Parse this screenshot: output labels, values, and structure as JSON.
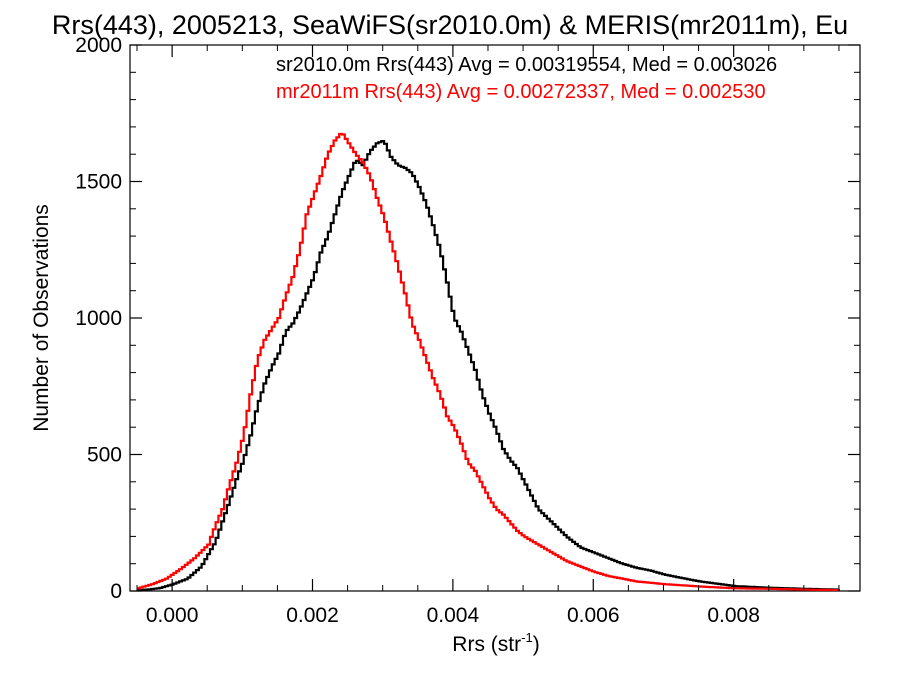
{
  "chart_data": {
    "type": "line",
    "title": "Rrs(443), 2005213, SeaWiFS(sr2010.0m) & MERIS(mr2011m), Eu",
    "xlabel_main": "Rrs (str",
    "xlabel_sup": "-1",
    "xlabel_close": ")",
    "ylabel": "Number of Observations",
    "xlim": [
      -0.0006,
      0.0098
    ],
    "ylim": [
      0,
      2000
    ],
    "xticks": [
      0.0,
      0.002,
      0.004,
      0.006,
      0.008
    ],
    "xtick_labels": [
      "0.000",
      "0.002",
      "0.004",
      "0.006",
      "0.008"
    ],
    "yticks": [
      0,
      500,
      1000,
      1500,
      2000
    ],
    "ytick_labels": [
      "0",
      "500",
      "1000",
      "1500",
      "2000"
    ],
    "grid": false,
    "legend_position": "top-right",
    "series": [
      {
        "name": "sr2010.0m",
        "stat_text": "sr2010.0m Rrs(443) Avg = 0.00319554, Med = 0.003026",
        "color": "#000000",
        "x": [
          -0.0005,
          -0.0002,
          0.0,
          0.0002,
          0.0004,
          0.0006,
          0.0008,
          0.0009,
          0.001,
          0.0011,
          0.0012,
          0.0013,
          0.0014,
          0.0015,
          0.0016,
          0.0017,
          0.0018,
          0.0019,
          0.002,
          0.0021,
          0.0022,
          0.0023,
          0.0024,
          0.0025,
          0.0026,
          0.0027,
          0.0028,
          0.0029,
          0.003,
          0.0031,
          0.0032,
          0.0033,
          0.0034,
          0.0035,
          0.0036,
          0.0037,
          0.0038,
          0.0039,
          0.004,
          0.0041,
          0.0042,
          0.0043,
          0.0044,
          0.0045,
          0.0046,
          0.0047,
          0.0048,
          0.0049,
          0.005,
          0.0051,
          0.0052,
          0.0054,
          0.0056,
          0.0058,
          0.006,
          0.0062,
          0.0064,
          0.0066,
          0.0068,
          0.007,
          0.0072,
          0.0075,
          0.0078,
          0.008,
          0.0085,
          0.009,
          0.0095
        ],
        "values": [
          2,
          10,
          25,
          45,
          90,
          180,
          330,
          410,
          480,
          570,
          680,
          760,
          820,
          870,
          950,
          980,
          1030,
          1090,
          1150,
          1240,
          1300,
          1380,
          1460,
          1520,
          1580,
          1560,
          1610,
          1640,
          1650,
          1590,
          1560,
          1550,
          1530,
          1480,
          1420,
          1340,
          1250,
          1130,
          1000,
          950,
          880,
          810,
          720,
          650,
          590,
          520,
          480,
          450,
          400,
          350,
          300,
          250,
          200,
          160,
          140,
          120,
          100,
          85,
          75,
          60,
          50,
          35,
          25,
          18,
          12,
          8,
          5
        ]
      },
      {
        "name": "mr2011m",
        "stat_text": "mr2011m Rrs(443) Avg = 0.00272337, Med = 0.002530",
        "color": "#ff0000",
        "x": [
          -0.0005,
          -0.0003,
          -0.0001,
          0.0001,
          0.0003,
          0.0005,
          0.0006,
          0.0007,
          0.0008,
          0.0009,
          0.001,
          0.0011,
          0.0012,
          0.0013,
          0.0014,
          0.0015,
          0.0016,
          0.0017,
          0.0018,
          0.0019,
          0.002,
          0.0021,
          0.0022,
          0.0023,
          0.0024,
          0.0025,
          0.0026,
          0.0027,
          0.0028,
          0.0029,
          0.003,
          0.0031,
          0.0032,
          0.0033,
          0.0034,
          0.0035,
          0.0036,
          0.0037,
          0.0038,
          0.0039,
          0.004,
          0.0041,
          0.0042,
          0.0043,
          0.0044,
          0.0045,
          0.0046,
          0.0047,
          0.0048,
          0.0049,
          0.005,
          0.0052,
          0.0054,
          0.0056,
          0.0058,
          0.006,
          0.0062,
          0.0064,
          0.0066,
          0.0068,
          0.007,
          0.0073,
          0.0076,
          0.008,
          0.0085,
          0.009,
          0.0095
        ],
        "values": [
          10,
          25,
          45,
          80,
          120,
          170,
          240,
          300,
          390,
          470,
          570,
          720,
          850,
          920,
          960,
          1000,
          1080,
          1150,
          1250,
          1380,
          1450,
          1520,
          1600,
          1650,
          1680,
          1640,
          1600,
          1570,
          1520,
          1440,
          1370,
          1280,
          1190,
          1090,
          980,
          920,
          850,
          780,
          720,
          640,
          600,
          540,
          470,
          440,
          390,
          340,
          300,
          280,
          250,
          220,
          200,
          170,
          140,
          110,
          90,
          70,
          55,
          45,
          35,
          30,
          25,
          20,
          15,
          10,
          8,
          5,
          3
        ]
      }
    ]
  }
}
